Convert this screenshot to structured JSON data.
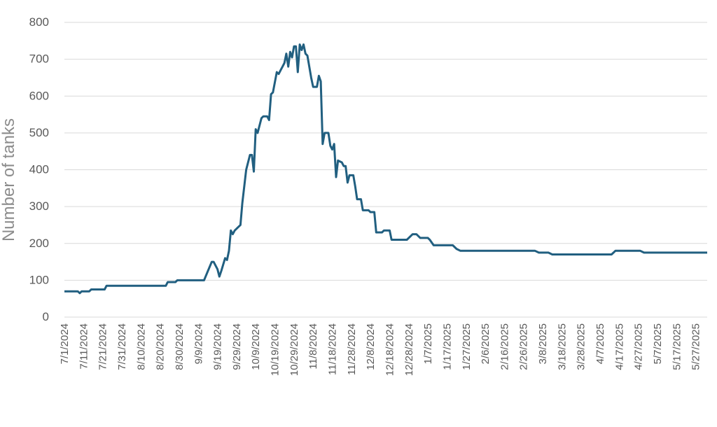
{
  "chart_data": {
    "type": "line",
    "y_label": "Number of tanks",
    "xlim": [
      "7/1/2024",
      "6/2/2025"
    ],
    "xticks": [
      "7/1/2024",
      "7/11/2024",
      "7/21/2024",
      "7/31/2024",
      "8/10/2024",
      "8/20/2024",
      "8/30/2024",
      "9/9/2024",
      "9/19/2024",
      "9/29/2024",
      "10/9/2024",
      "10/19/2024",
      "10/29/2024",
      "11/8/2024",
      "11/18/2024",
      "11/28/2024",
      "12/8/2024",
      "12/18/2024",
      "12/28/2024",
      "1/7/2025",
      "1/17/2025",
      "1/27/2025",
      "2/6/2025",
      "2/16/2025",
      "2/26/2025",
      "3/8/2025",
      "3/18/2025",
      "3/28/2025",
      "4/7/2025",
      "4/17/2025",
      "4/27/2025",
      "5/7/2025",
      "5/17/2025",
      "5/27/2025"
    ],
    "ylim": [
      0,
      800
    ],
    "yticks": [
      0,
      100,
      200,
      300,
      400,
      500,
      600,
      700,
      800
    ],
    "grid": true,
    "color": "#215f80",
    "x": [
      "7/1/2024",
      "7/8/2024",
      "7/9/2024",
      "7/10/2024",
      "7/14/2024",
      "7/15/2024",
      "7/22/2024",
      "7/23/2024",
      "8/23/2024",
      "8/24/2024",
      "8/28/2024",
      "8/29/2024",
      "9/12/2024",
      "9/14/2024",
      "9/16/2024",
      "9/17/2024",
      "9/19/2024",
      "9/20/2024",
      "9/21/2024",
      "9/23/2024",
      "9/24/2024",
      "9/25/2024",
      "9/26/2024",
      "9/27/2024",
      "9/28/2024",
      "9/30/2024",
      "10/1/2024",
      "10/2/2024",
      "10/4/2024",
      "10/6/2024",
      "10/7/2024",
      "10/8/2024",
      "10/9/2024",
      "10/10/2024",
      "10/12/2024",
      "10/13/2024",
      "10/15/2024",
      "10/16/2024",
      "10/17/2024",
      "10/18/2024",
      "10/20/2024",
      "10/21/2024",
      "10/22/2024",
      "10/23/2024",
      "10/24/2024",
      "10/25/2024",
      "10/26/2024",
      "10/27/2024",
      "10/28/2024",
      "10/29/2024",
      "10/30/2024",
      "10/31/2024",
      "11/1/2024",
      "11/2/2024",
      "11/3/2024",
      "11/4/2024",
      "11/5/2024",
      "11/7/2024",
      "11/8/2024",
      "11/10/2024",
      "11/11/2024",
      "11/12/2024",
      "11/13/2024",
      "11/14/2024",
      "11/16/2024",
      "11/17/2024",
      "11/18/2024",
      "11/19/2024",
      "11/20/2024",
      "11/21/2024",
      "11/23/2024",
      "11/24/2024",
      "11/25/2024",
      "11/26/2024",
      "11/27/2024",
      "11/29/2024",
      "11/30/2024",
      "12/1/2024",
      "12/3/2024",
      "12/4/2024",
      "12/7/2024",
      "12/8/2024",
      "12/10/2024",
      "12/11/2024",
      "12/14/2024",
      "12/15/2024",
      "12/18/2024",
      "12/19/2024",
      "12/27/2024",
      "12/30/2024",
      "1/1/2025",
      "1/3/2025",
      "1/7/2025",
      "1/8/2025",
      "1/10/2025",
      "1/20/2025",
      "1/22/2025",
      "1/24/2025",
      "3/4/2025",
      "3/6/2025",
      "3/11/2025",
      "3/13/2025",
      "4/13/2025",
      "4/15/2025",
      "4/28/2025",
      "4/30/2025",
      "6/2/2025"
    ],
    "values": [
      70,
      70,
      65,
      70,
      70,
      75,
      75,
      85,
      85,
      95,
      95,
      100,
      100,
      125,
      150,
      150,
      130,
      110,
      125,
      160,
      155,
      180,
      235,
      225,
      235,
      245,
      250,
      310,
      400,
      440,
      440,
      395,
      510,
      500,
      540,
      545,
      545,
      535,
      605,
      610,
      665,
      660,
      670,
      680,
      690,
      715,
      680,
      720,
      705,
      735,
      735,
      665,
      740,
      725,
      740,
      715,
      710,
      650,
      625,
      625,
      655,
      640,
      470,
      500,
      500,
      465,
      455,
      470,
      380,
      425,
      420,
      410,
      410,
      365,
      385,
      385,
      355,
      320,
      320,
      290,
      290,
      285,
      285,
      230,
      230,
      235,
      235,
      210,
      210,
      225,
      225,
      215,
      215,
      210,
      195,
      195,
      185,
      180,
      180,
      175,
      175,
      170,
      170,
      180,
      180,
      175,
      175
    ]
  }
}
